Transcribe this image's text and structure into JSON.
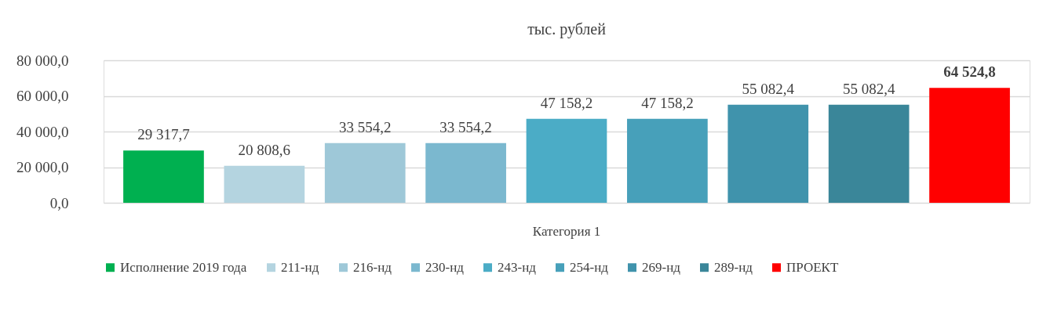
{
  "chart_data": {
    "type": "bar",
    "title": "тыс. рублей",
    "categories": [
      "Категория 1"
    ],
    "series": [
      {
        "name": "Исполнение 2019 года",
        "color": "#00b050",
        "values": [
          29317.7
        ],
        "value_labels": [
          "29 317,7"
        ]
      },
      {
        "name": "211-нд",
        "color": "#b4d4e0",
        "values": [
          20808.6
        ],
        "value_labels": [
          "20 808,6"
        ]
      },
      {
        "name": "216-нд",
        "color": "#9ec8d8",
        "values": [
          33554.2
        ],
        "value_labels": [
          "33 554,2"
        ]
      },
      {
        "name": "230-нд",
        "color": "#7bb8cf",
        "values": [
          33554.2
        ],
        "value_labels": [
          "33 554,2"
        ]
      },
      {
        "name": "243-нд",
        "color": "#4bacc6",
        "values": [
          47158.2
        ],
        "value_labels": [
          "47 158,2"
        ]
      },
      {
        "name": "254-нд",
        "color": "#47a0ba",
        "values": [
          47158.2
        ],
        "value_labels": [
          "47 158,2"
        ]
      },
      {
        "name": "269-нд",
        "color": "#4093ac",
        "values": [
          55082.4
        ],
        "value_labels": [
          "55 082,4"
        ]
      },
      {
        "name": "289-нд",
        "color": "#3a8699",
        "values": [
          55082.4
        ],
        "value_labels": [
          "55 082,4"
        ]
      },
      {
        "name": "ПРОЕКТ",
        "color": "#ff0000",
        "values": [
          64524.8
        ],
        "value_labels": [
          "64 524,8"
        ]
      }
    ],
    "ylim": [
      0,
      80000
    ],
    "yticks": [
      {
        "value": 0,
        "label": "0,0"
      },
      {
        "value": 20000,
        "label": "20 000,0"
      },
      {
        "value": 40000,
        "label": "40 000,0"
      },
      {
        "value": 60000,
        "label": "60 000,0"
      },
      {
        "value": 80000,
        "label": "80 000,0"
      }
    ],
    "grid": "y",
    "legend": "bottom"
  }
}
